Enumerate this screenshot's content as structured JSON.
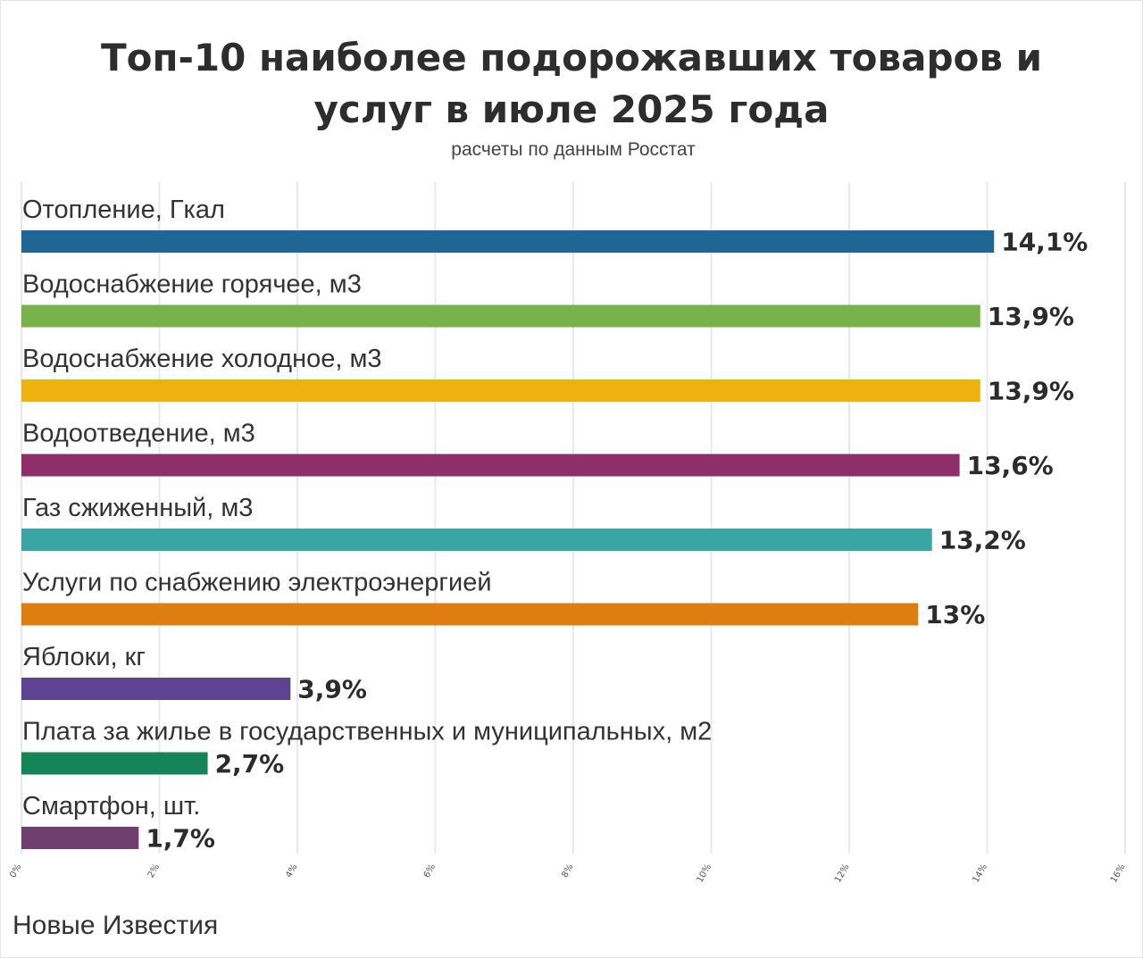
{
  "title": "Топ-10 наиболее подорожавших товаров и услуг в июле 2025 года",
  "subtitle": "расчеты по данным Росстат",
  "footer": "Новые Известия",
  "chart_data": {
    "type": "bar",
    "orientation": "horizontal",
    "categories": [
      "Отопление, Гкал",
      "Водоснабжение горячее, м3",
      "Водоснабжение холодное, м3",
      "Водоотведение, м3",
      "Газ сжиженный, м3",
      "Услуги по снабжению электроэнергией",
      "Яблоки, кг",
      "Плата за жилье в государственных и муниципальных, м2",
      "Смартфон, шт."
    ],
    "values": [
      14.1,
      13.9,
      13.9,
      13.6,
      13.2,
      13,
      3.9,
      2.7,
      1.7
    ],
    "value_labels": [
      "14,1%",
      "13,9%",
      "13,9%",
      "13,6%",
      "13,2%",
      "13%",
      "3,9%",
      "2,7%",
      "1,7%"
    ],
    "colors": [
      "#1f6694",
      "#77b24a",
      "#edb20e",
      "#8e2f6c",
      "#3aa5a5",
      "#df7e10",
      "#5d4392",
      "#158458",
      "#6f3f70"
    ],
    "xlim": [
      0,
      16
    ],
    "xticks": [
      "0%",
      "2%",
      "4%",
      "6%",
      "8%",
      "10%",
      "12%",
      "14%",
      "16%"
    ],
    "grid": true,
    "legend": false
  }
}
